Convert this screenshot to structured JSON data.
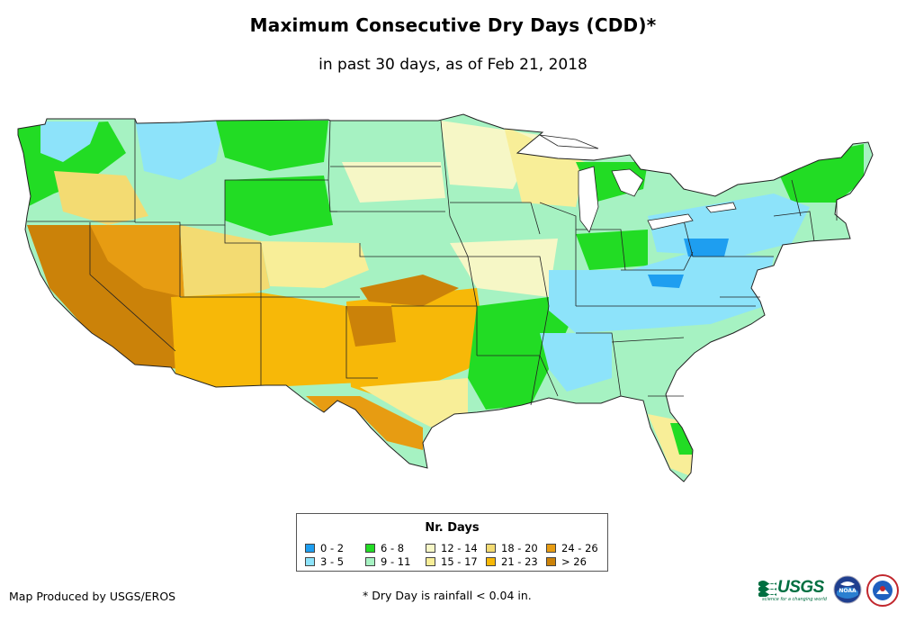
{
  "title": "Maximum Consecutive Dry Days (CDD)*",
  "subtitle": "in past 30 days, as of Feb 21, 2018",
  "legend": {
    "title": "Nr. Days",
    "items": [
      {
        "label": "0 - 2",
        "color": "#1e9ef0"
      },
      {
        "label": "3 - 5",
        "color": "#8de3fa"
      },
      {
        "label": "6 - 8",
        "color": "#22dc24"
      },
      {
        "label": "9 - 11",
        "color": "#a6f2c2"
      },
      {
        "label": "12 - 14",
        "color": "#f6f7c6"
      },
      {
        "label": "15 - 17",
        "color": "#f8ee98"
      },
      {
        "label": "18 - 20",
        "color": "#f3db72"
      },
      {
        "label": "21 - 23",
        "color": "#f7b808"
      },
      {
        "label": "24 - 26",
        "color": "#e79c12"
      },
      {
        "label": "> 26",
        "color": "#cb8209"
      }
    ]
  },
  "footer": {
    "credit": "Map Produced by USGS/EROS",
    "note": "* Dry Day is rainfall < 0.04 in."
  },
  "logos": {
    "usgs_text": "USGS",
    "usgs_tagline": "science for a changing world",
    "noaa_text": "NOAA"
  }
}
